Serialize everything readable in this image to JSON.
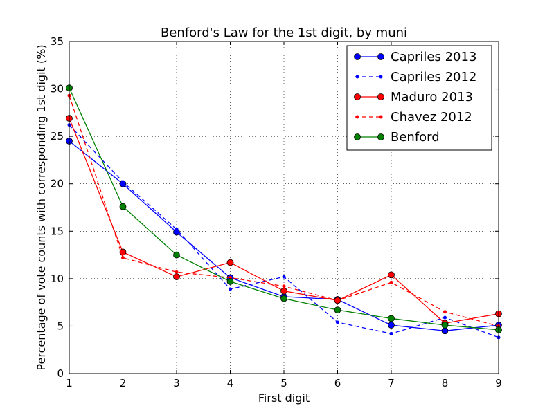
{
  "chart_data": {
    "type": "line",
    "title": "Benford's Law for the 1st digit, by muni",
    "xlabel": "First digit",
    "ylabel": "Percentage of vote counts with corresponding 1st digit (%)",
    "xlim": [
      1,
      9
    ],
    "ylim": [
      0,
      35
    ],
    "xticks": [
      1,
      2,
      3,
      4,
      5,
      6,
      7,
      8,
      9
    ],
    "yticks": [
      0,
      5,
      10,
      15,
      20,
      25,
      30,
      35
    ],
    "grid": true,
    "legend_position": "top-right",
    "x": [
      1,
      2,
      3,
      4,
      5,
      6,
      7,
      8,
      9
    ],
    "series": [
      {
        "name": "Capriles 2013",
        "color": "#0000ff",
        "dashed": false,
        "marker": "large",
        "values": [
          24.5,
          20.0,
          14.9,
          10.1,
          8.1,
          7.8,
          5.1,
          4.5,
          5.1
        ]
      },
      {
        "name": "Capriles 2012",
        "color": "#0000ff",
        "dashed": true,
        "marker": "small",
        "values": [
          26.2,
          20.2,
          15.2,
          8.9,
          10.2,
          5.4,
          4.2,
          5.9,
          3.8
        ]
      },
      {
        "name": "Maduro 2013",
        "color": "#ff0000",
        "dashed": false,
        "marker": "large",
        "values": [
          26.9,
          12.8,
          10.2,
          11.7,
          8.7,
          7.7,
          10.4,
          5.3,
          6.3
        ]
      },
      {
        "name": "Chavez 2012",
        "color": "#ff0000",
        "dashed": true,
        "marker": "small",
        "values": [
          29.3,
          12.2,
          10.7,
          10.1,
          9.2,
          7.7,
          9.6,
          6.5,
          5.0
        ]
      },
      {
        "name": "Benford",
        "color": "#008000",
        "dashed": false,
        "marker": "large",
        "values": [
          30.1,
          17.6,
          12.5,
          9.7,
          7.9,
          6.7,
          5.8,
          5.1,
          4.6
        ]
      }
    ]
  }
}
